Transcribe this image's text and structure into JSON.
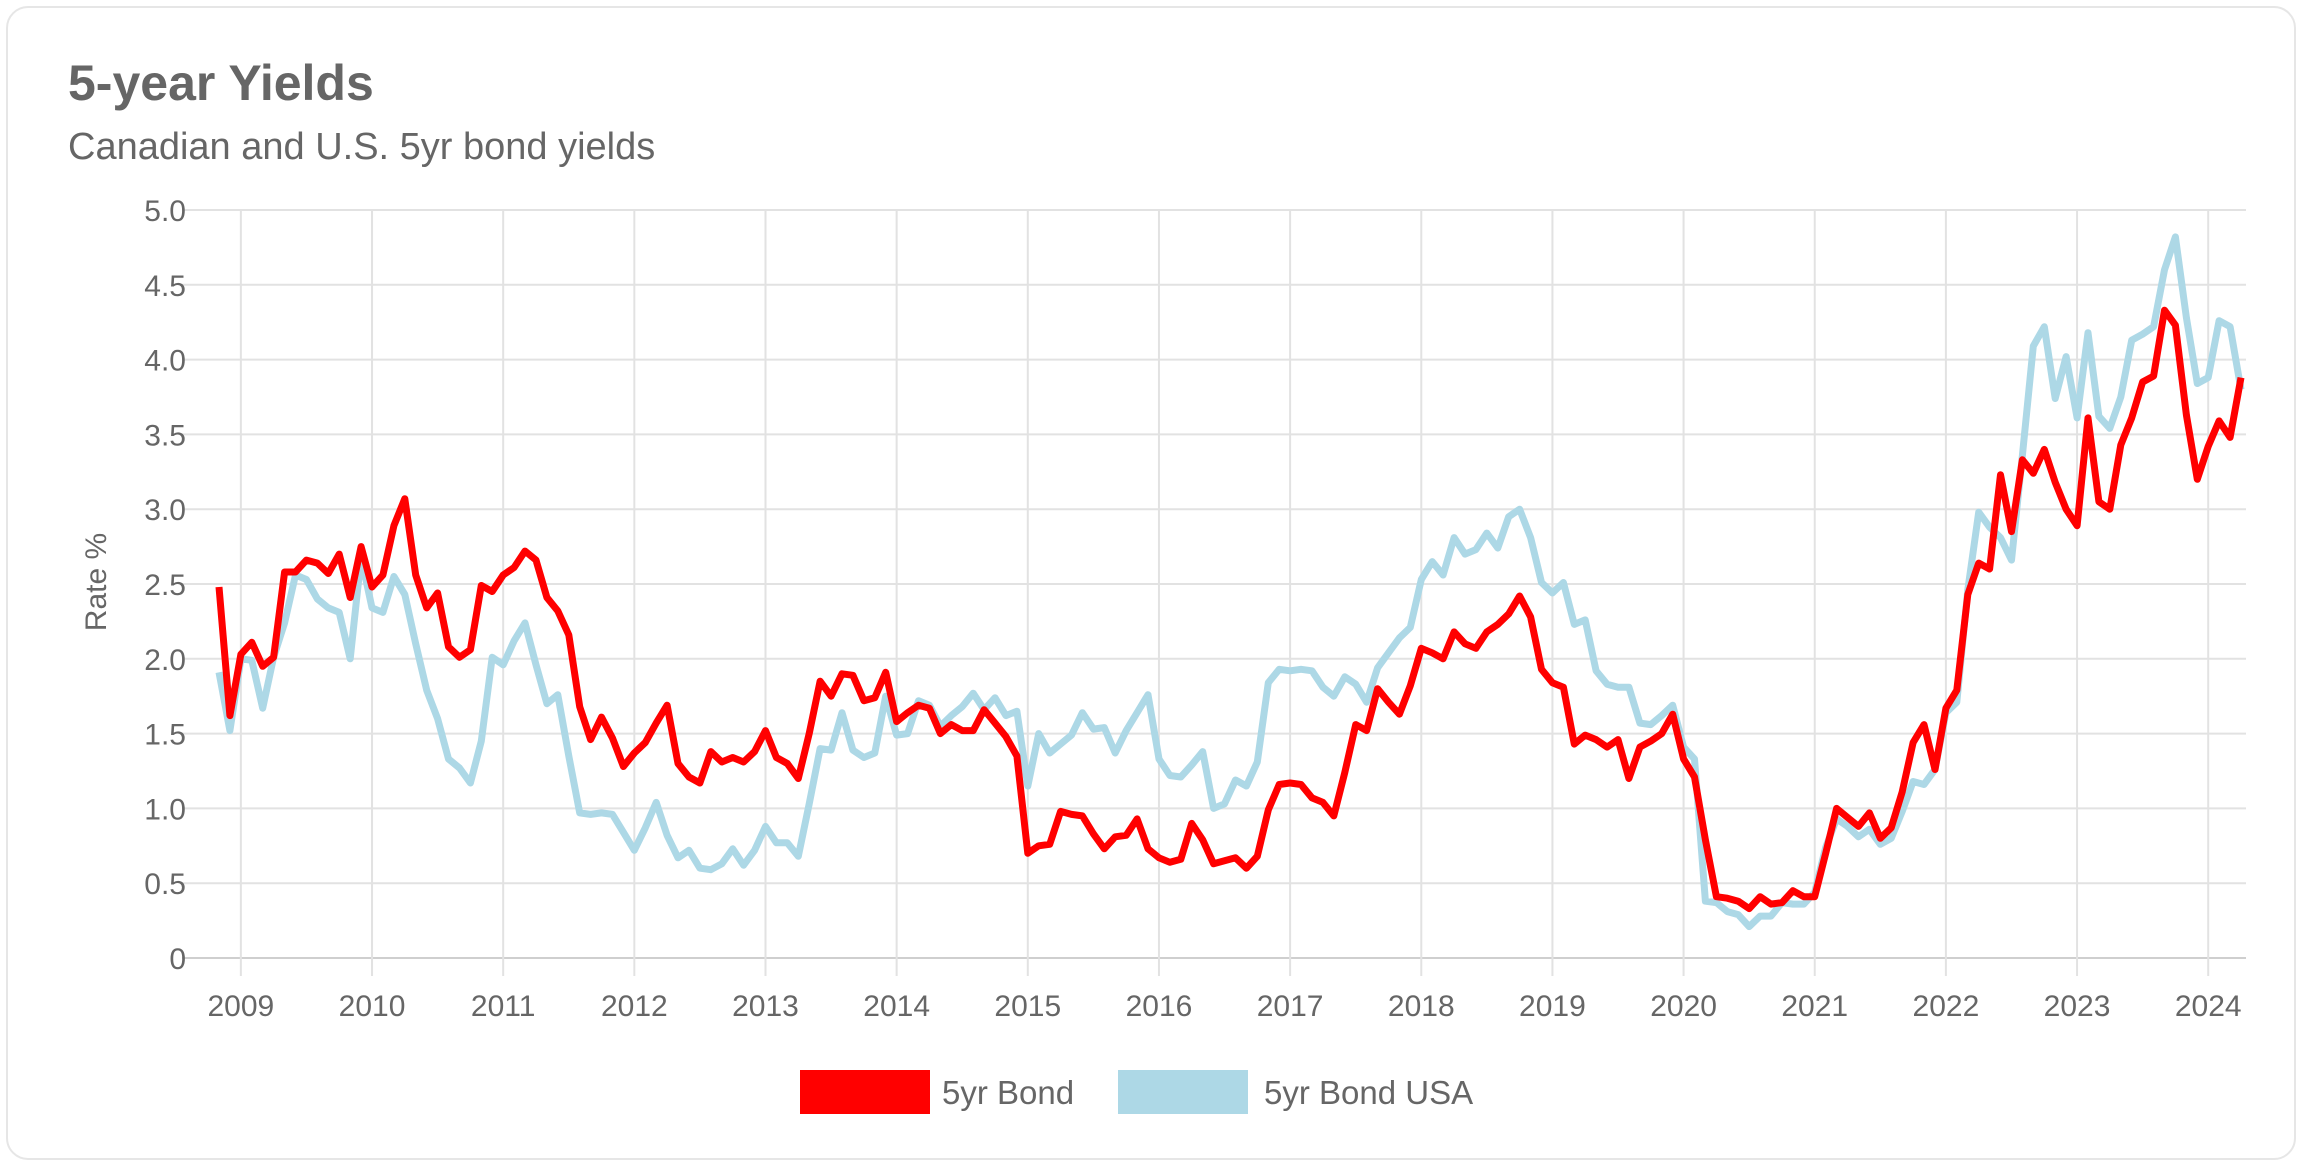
{
  "header": {
    "title": "5-year Yields",
    "subtitle": "Canadian and U.S. 5yr bond yields"
  },
  "chart_data": {
    "type": "line",
    "title": "5-year Yields",
    "subtitle": "Canadian and U.S. 5yr bond yields",
    "xlabel": "",
    "ylabel": "Rate %",
    "ylim": [
      0,
      5.0
    ],
    "xlim": [
      "2008-11",
      "2024-04"
    ],
    "y_ticks": [
      "0",
      "0.5",
      "1.0",
      "1.5",
      "2.0",
      "2.5",
      "3.0",
      "3.5",
      "4.0",
      "4.5",
      "5.0"
    ],
    "x_ticks": [
      "2009",
      "2010",
      "2011",
      "2012",
      "2013",
      "2014",
      "2015",
      "2016",
      "2017",
      "2018",
      "2019",
      "2020",
      "2021",
      "2022",
      "2023",
      "2024"
    ],
    "grid": true,
    "legend_position": "bottom-center",
    "x": [
      "2008-11",
      "2008-12",
      "2009-01",
      "2009-02",
      "2009-03",
      "2009-04",
      "2009-05",
      "2009-06",
      "2009-07",
      "2009-08",
      "2009-09",
      "2009-10",
      "2009-11",
      "2009-12",
      "2010-01",
      "2010-02",
      "2010-03",
      "2010-04",
      "2010-05",
      "2010-06",
      "2010-07",
      "2010-08",
      "2010-09",
      "2010-10",
      "2010-11",
      "2010-12",
      "2011-01",
      "2011-02",
      "2011-03",
      "2011-04",
      "2011-05",
      "2011-06",
      "2011-07",
      "2011-08",
      "2011-09",
      "2011-10",
      "2011-11",
      "2011-12",
      "2012-01",
      "2012-02",
      "2012-03",
      "2012-04",
      "2012-05",
      "2012-06",
      "2012-07",
      "2012-08",
      "2012-09",
      "2012-10",
      "2012-11",
      "2012-12",
      "2013-01",
      "2013-02",
      "2013-03",
      "2013-04",
      "2013-05",
      "2013-06",
      "2013-07",
      "2013-08",
      "2013-09",
      "2013-10",
      "2013-11",
      "2013-12",
      "2014-01",
      "2014-02",
      "2014-03",
      "2014-04",
      "2014-05",
      "2014-06",
      "2014-07",
      "2014-08",
      "2014-09",
      "2014-10",
      "2014-11",
      "2014-12",
      "2015-01",
      "2015-02",
      "2015-03",
      "2015-04",
      "2015-05",
      "2015-06",
      "2015-07",
      "2015-08",
      "2015-09",
      "2015-10",
      "2015-11",
      "2015-12",
      "2016-01",
      "2016-02",
      "2016-03",
      "2016-04",
      "2016-05",
      "2016-06",
      "2016-07",
      "2016-08",
      "2016-09",
      "2016-10",
      "2016-11",
      "2016-12",
      "2017-01",
      "2017-02",
      "2017-03",
      "2017-04",
      "2017-05",
      "2017-06",
      "2017-07",
      "2017-08",
      "2017-09",
      "2017-10",
      "2017-11",
      "2017-12",
      "2018-01",
      "2018-02",
      "2018-03",
      "2018-04",
      "2018-05",
      "2018-06",
      "2018-07",
      "2018-08",
      "2018-09",
      "2018-10",
      "2018-11",
      "2018-12",
      "2019-01",
      "2019-02",
      "2019-03",
      "2019-04",
      "2019-05",
      "2019-06",
      "2019-07",
      "2019-08",
      "2019-09",
      "2019-10",
      "2019-11",
      "2019-12",
      "2020-01",
      "2020-02",
      "2020-03",
      "2020-04",
      "2020-05",
      "2020-06",
      "2020-07",
      "2020-08",
      "2020-09",
      "2020-10",
      "2020-11",
      "2020-12",
      "2021-01",
      "2021-02",
      "2021-03",
      "2021-04",
      "2021-05",
      "2021-06",
      "2021-07",
      "2021-08",
      "2021-09",
      "2021-10",
      "2021-11",
      "2021-12",
      "2022-01",
      "2022-02",
      "2022-03",
      "2022-04",
      "2022-05",
      "2022-06",
      "2022-07",
      "2022-08",
      "2022-09",
      "2022-10",
      "2022-11",
      "2022-12",
      "2023-01",
      "2023-02",
      "2023-03",
      "2023-04",
      "2023-05",
      "2023-06",
      "2023-07",
      "2023-08",
      "2023-09",
      "2023-10",
      "2023-11",
      "2023-12",
      "2024-01",
      "2024-02",
      "2024-03",
      "2024-04"
    ],
    "series": [
      {
        "name": "5yr Bond",
        "color": "#ff0000",
        "values": [
          2.48,
          1.62,
          2.03,
          2.11,
          1.95,
          2.01,
          2.58,
          2.58,
          2.66,
          2.64,
          2.57,
          2.7,
          2.41,
          2.75,
          2.48,
          2.56,
          2.89,
          3.07,
          2.56,
          2.34,
          2.44,
          2.08,
          2.01,
          2.06,
          2.49,
          2.45,
          2.56,
          2.61,
          2.72,
          2.66,
          2.41,
          2.32,
          2.16,
          1.68,
          1.46,
          1.61,
          1.47,
          1.28,
          1.37,
          1.44,
          1.57,
          1.69,
          1.3,
          1.21,
          1.17,
          1.38,
          1.31,
          1.34,
          1.31,
          1.38,
          1.52,
          1.34,
          1.3,
          1.2,
          1.5,
          1.85,
          1.75,
          1.9,
          1.89,
          1.72,
          1.74,
          1.91,
          1.58,
          1.64,
          1.69,
          1.67,
          1.5,
          1.56,
          1.52,
          1.52,
          1.66,
          1.57,
          1.48,
          1.35,
          0.7,
          0.75,
          0.76,
          0.98,
          0.96,
          0.95,
          0.83,
          0.73,
          0.81,
          0.82,
          0.93,
          0.73,
          0.67,
          0.64,
          0.66,
          0.9,
          0.79,
          0.63,
          0.65,
          0.67,
          0.6,
          0.68,
          0.99,
          1.16,
          1.17,
          1.16,
          1.07,
          1.04,
          0.95,
          1.24,
          1.56,
          1.52,
          1.8,
          1.71,
          1.63,
          1.82,
          2.07,
          2.04,
          2.0,
          2.18,
          2.1,
          2.07,
          2.18,
          2.23,
          2.3,
          2.42,
          2.28,
          1.93,
          1.84,
          1.81,
          1.43,
          1.49,
          1.46,
          1.41,
          1.46,
          1.2,
          1.41,
          1.45,
          1.5,
          1.63,
          1.33,
          1.21,
          0.79,
          0.41,
          0.4,
          0.38,
          0.33,
          0.41,
          0.36,
          0.37,
          0.45,
          0.41,
          0.41,
          0.7,
          1.0,
          0.94,
          0.88,
          0.97,
          0.8,
          0.87,
          1.11,
          1.44,
          1.56,
          1.26,
          1.67,
          1.79,
          2.43,
          2.64,
          2.6,
          3.23,
          2.85,
          3.33,
          3.24,
          3.4,
          3.18,
          3.0,
          2.89,
          3.61,
          3.05,
          3.0,
          3.43,
          3.61,
          3.85,
          3.89,
          4.33,
          4.23,
          3.63,
          3.2,
          3.42,
          3.59,
          3.48,
          3.88
        ]
      },
      {
        "name": "5yr Bond USA",
        "color": "#add8e6",
        "values": [
          1.91,
          1.52,
          2.0,
          1.99,
          1.67,
          2.01,
          2.24,
          2.56,
          2.53,
          2.4,
          2.34,
          2.31,
          2.0,
          2.68,
          2.34,
          2.31,
          2.55,
          2.43,
          2.1,
          1.79,
          1.6,
          1.33,
          1.27,
          1.17,
          1.45,
          2.01,
          1.96,
          2.12,
          2.24,
          1.96,
          1.7,
          1.76,
          1.35,
          0.97,
          0.96,
          0.97,
          0.96,
          0.84,
          0.72,
          0.87,
          1.04,
          0.82,
          0.67,
          0.72,
          0.6,
          0.59,
          0.63,
          0.73,
          0.62,
          0.72,
          0.88,
          0.77,
          0.77,
          0.68,
          1.03,
          1.4,
          1.39,
          1.64,
          1.39,
          1.34,
          1.37,
          1.75,
          1.49,
          1.5,
          1.72,
          1.69,
          1.55,
          1.62,
          1.68,
          1.77,
          1.66,
          1.74,
          1.62,
          1.65,
          1.15,
          1.5,
          1.37,
          1.43,
          1.49,
          1.64,
          1.53,
          1.54,
          1.37,
          1.52,
          1.64,
          1.76,
          1.33,
          1.22,
          1.21,
          1.29,
          1.38,
          1.0,
          1.03,
          1.19,
          1.15,
          1.31,
          1.84,
          1.93,
          1.92,
          1.93,
          1.92,
          1.81,
          1.75,
          1.88,
          1.83,
          1.71,
          1.94,
          2.04,
          2.14,
          2.21,
          2.53,
          2.65,
          2.56,
          2.81,
          2.7,
          2.73,
          2.84,
          2.74,
          2.95,
          3.0,
          2.81,
          2.51,
          2.44,
          2.51,
          2.23,
          2.26,
          1.92,
          1.83,
          1.81,
          1.81,
          1.57,
          1.56,
          1.62,
          1.69,
          1.41,
          1.33,
          0.38,
          0.37,
          0.31,
          0.29,
          0.21,
          0.28,
          0.28,
          0.37,
          0.36,
          0.36,
          0.44,
          0.74,
          0.93,
          0.88,
          0.81,
          0.86,
          0.76,
          0.8,
          0.98,
          1.18,
          1.16,
          1.26,
          1.64,
          1.71,
          2.46,
          2.98,
          2.88,
          2.81,
          2.66,
          3.36,
          4.09,
          4.22,
          3.74,
          4.02,
          3.61,
          4.18,
          3.62,
          3.54,
          3.75,
          4.13,
          4.17,
          4.22,
          4.6,
          4.82,
          4.28,
          3.84,
          3.88,
          4.26,
          4.22,
          3.8
        ]
      }
    ]
  }
}
